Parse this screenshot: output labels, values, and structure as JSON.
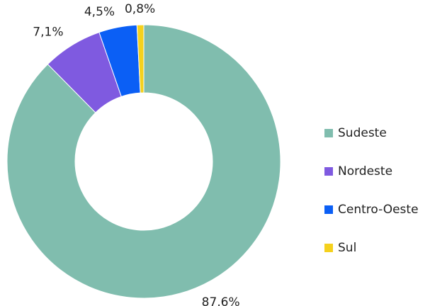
{
  "chart_data": {
    "type": "donut",
    "categories": [
      "Sudeste",
      "Nordeste",
      "Centro-Oeste",
      "Sul"
    ],
    "values": [
      87.6,
      7.1,
      4.5,
      0.8
    ],
    "value_labels": [
      "87,6%",
      "7,1%",
      "4,5%",
      "0,8%"
    ],
    "colors": [
      "#80bdae",
      "#7f5ae0",
      "#0b5ff5",
      "#f5d11d"
    ],
    "legend": "right"
  }
}
